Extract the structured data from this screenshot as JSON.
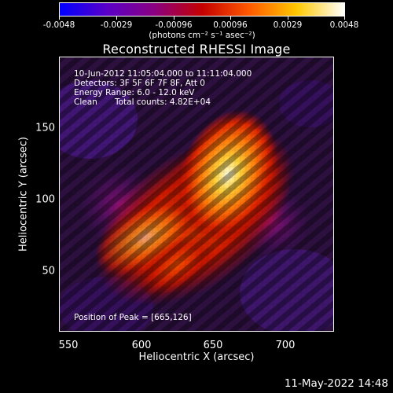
{
  "colorbar": {
    "ticks": [
      "-0.0048",
      "-0.0029",
      "-0.00096",
      "0.00096",
      "0.0029",
      "0.0048"
    ],
    "units": "(photons cm⁻² s⁻¹ asec⁻²)",
    "colors": [
      "#0000ff",
      "#5a00c8",
      "#8a0080",
      "#c40000",
      "#ff5a00",
      "#ffc800",
      "#ffffff"
    ]
  },
  "title": "Reconstructed RHESSI Image",
  "info": {
    "time_range": "10-Jun-2012 11:05:04.000 to 11:11:04.000",
    "detectors": "Detectors: 3F 5F 6F 7F 8F, Att 0",
    "energy": "Energy Range: 6.0 - 12.0 keV",
    "clean_label": "Clean",
    "total_counts": "Total counts: 4.82E+04"
  },
  "peak": "Position of Peak = [665,126]",
  "axes": {
    "xlabel": "Heliocentric X (arcsec)",
    "ylabel": "Heliocentric Y (arcsec)",
    "xticks": [
      "550",
      "600",
      "650",
      "700"
    ],
    "yticks": [
      "50",
      "100",
      "150"
    ]
  },
  "timestamp": "11-May-2022 14:48"
}
